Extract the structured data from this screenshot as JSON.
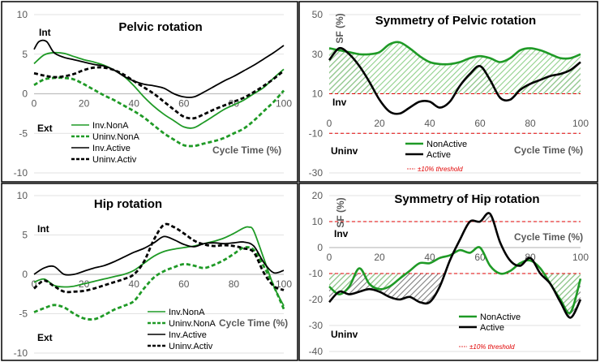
{
  "colors": {
    "green": "#1f9a26",
    "black": "#000000",
    "light_green_hatch": "#8fd08a",
    "grey_hatch": "#7f7f7f",
    "threshold": "#e00000",
    "grid": "#d9d9d9",
    "axis": "#bfbfbf"
  },
  "chart_data": [
    {
      "type": "line",
      "title": "Pelvic rotation",
      "top_label": "Int",
      "bottom_label": "Ext",
      "xlabel": "Cycle  Time (%)",
      "ylabel": "",
      "xlim": [
        0,
        100
      ],
      "ylim": [
        -10,
        10
      ],
      "x_ticks": [
        "0",
        "20",
        "40",
        "60",
        "80",
        "100"
      ],
      "y_ticks": [
        "10",
        "5",
        "0",
        "-5",
        "-10"
      ],
      "series": [
        {
          "name": "Inv.NonA",
          "color": "green",
          "dash": "solid",
          "x": [
            0,
            4,
            8,
            12,
            16,
            20,
            24,
            28,
            32,
            36,
            40,
            44,
            48,
            52,
            56,
            60,
            64,
            68,
            72,
            76,
            80,
            84,
            88,
            92,
            96,
            100
          ],
          "y": [
            3.8,
            4.9,
            5.2,
            5.1,
            4.7,
            4.3,
            4.0,
            3.6,
            3.0,
            2.2,
            1.0,
            -0.4,
            -1.6,
            -2.6,
            -3.4,
            -4.2,
            -4.3,
            -3.6,
            -2.8,
            -2.0,
            -1.4,
            -0.8,
            0.0,
            0.8,
            2.0,
            3.1
          ]
        },
        {
          "name": "Uninv.NonA",
          "color": "green",
          "dash": "dashed",
          "x": [
            0,
            4,
            8,
            12,
            16,
            20,
            24,
            28,
            32,
            36,
            40,
            44,
            48,
            52,
            56,
            60,
            64,
            68,
            72,
            76,
            80,
            84,
            88,
            92,
            96,
            100
          ],
          "y": [
            1.1,
            1.8,
            2.0,
            2.0,
            1.8,
            1.2,
            0.5,
            -0.2,
            -0.8,
            -1.5,
            -2.2,
            -3.0,
            -4.0,
            -5.0,
            -5.8,
            -6.5,
            -6.6,
            -6.3,
            -6.0,
            -5.6,
            -5.0,
            -4.4,
            -3.4,
            -2.2,
            -1.0,
            0.4
          ]
        },
        {
          "name": "Inv.Active",
          "color": "black",
          "dash": "solid",
          "x": [
            0,
            2,
            5,
            8,
            12,
            16,
            20,
            24,
            28,
            32,
            36,
            40,
            44,
            48,
            52,
            56,
            60,
            64,
            68,
            72,
            76,
            80,
            84,
            88,
            92,
            96,
            100
          ],
          "y": [
            5.6,
            6.6,
            6.6,
            5.2,
            4.6,
            4.3,
            4.0,
            3.7,
            3.5,
            3.0,
            2.2,
            1.6,
            1.2,
            1.0,
            0.7,
            0.0,
            -0.4,
            -0.4,
            0.2,
            0.9,
            1.6,
            2.2,
            2.9,
            3.6,
            4.4,
            5.2,
            6.1
          ]
        },
        {
          "name": "Uninv.Activ",
          "color": "black",
          "dash": "dashed",
          "x": [
            0,
            4,
            8,
            12,
            16,
            20,
            24,
            28,
            32,
            36,
            40,
            44,
            48,
            52,
            56,
            60,
            64,
            68,
            72,
            76,
            80,
            84,
            88,
            92,
            96,
            100
          ],
          "y": [
            2.6,
            2.3,
            2.1,
            2.2,
            2.5,
            3.0,
            3.3,
            3.3,
            3.0,
            2.4,
            1.6,
            0.8,
            0.0,
            -1.0,
            -2.0,
            -2.9,
            -3.1,
            -2.6,
            -2.0,
            -1.5,
            -1.0,
            -0.5,
            0.2,
            1.0,
            1.9,
            2.9
          ]
        }
      ]
    },
    {
      "type": "line",
      "title": "Symmetry of Pelvic rotation",
      "ylabel": "SF (%)",
      "top_label": "Inv",
      "bottom_label": "Uninv",
      "xlabel": "Cycle Time (%)",
      "xlim": [
        0,
        100
      ],
      "ylim": [
        -30,
        50
      ],
      "x_ticks": [
        "0",
        "20",
        "40",
        "60",
        "80",
        "100"
      ],
      "y_ticks": [
        "50",
        "30",
        "10",
        "-10",
        "-30"
      ],
      "thresholds": [
        10,
        -10
      ],
      "threshold_label": "±10% threshold",
      "series": [
        {
          "name": "NonActive",
          "color": "green",
          "x": [
            0,
            4,
            8,
            12,
            16,
            20,
            24,
            28,
            32,
            36,
            40,
            44,
            48,
            52,
            56,
            60,
            64,
            68,
            72,
            76,
            80,
            84,
            88,
            92,
            96,
            100
          ],
          "y": [
            33,
            32,
            31,
            30,
            30,
            31,
            35,
            36,
            33,
            29,
            26,
            25,
            25,
            26,
            28,
            29,
            28,
            26,
            28,
            32,
            33,
            32,
            30,
            28,
            28,
            30
          ]
        },
        {
          "name": "Active",
          "color": "black",
          "x": [
            0,
            4,
            8,
            12,
            16,
            20,
            24,
            28,
            32,
            36,
            40,
            44,
            48,
            52,
            56,
            60,
            64,
            68,
            72,
            76,
            80,
            84,
            88,
            92,
            96,
            100
          ],
          "y": [
            27,
            33,
            30,
            24,
            16,
            7,
            1,
            0,
            3,
            6,
            6,
            3,
            6,
            14,
            20,
            24,
            17,
            8,
            7,
            12,
            15,
            17,
            19,
            20,
            22,
            26
          ]
        }
      ]
    },
    {
      "type": "line",
      "title": "Hip rotation",
      "top_label": "Int",
      "bottom_label": "Ext",
      "xlabel": "Cycle Time (%)",
      "ylabel": "",
      "xlim": [
        0,
        100
      ],
      "ylim": [
        -10,
        10
      ],
      "x_ticks": [
        "0",
        "20",
        "40",
        "60",
        "80",
        "100"
      ],
      "y_ticks": [
        "10",
        "5",
        "0",
        "-5",
        "-10"
      ],
      "series": [
        {
          "name": "Inv.NonA",
          "color": "green",
          "dash": "solid",
          "x": [
            0,
            4,
            8,
            12,
            16,
            20,
            24,
            28,
            32,
            36,
            40,
            44,
            48,
            52,
            56,
            60,
            64,
            68,
            72,
            76,
            80,
            84,
            86,
            88,
            92,
            96,
            100
          ],
          "y": [
            -1.0,
            -0.6,
            -1.4,
            -1.6,
            -1.5,
            -1.2,
            -0.9,
            -0.6,
            -0.3,
            0.0,
            0.5,
            1.4,
            2.3,
            2.9,
            3.2,
            3.4,
            3.6,
            3.9,
            4.2,
            4.6,
            5.2,
            5.9,
            6.0,
            5.5,
            2.0,
            -1.5,
            -4.0
          ]
        },
        {
          "name": "Uninv.NonA",
          "color": "green",
          "dash": "dashed",
          "x": [
            0,
            4,
            8,
            12,
            16,
            20,
            24,
            28,
            32,
            36,
            40,
            44,
            48,
            52,
            56,
            60,
            64,
            68,
            72,
            76,
            80,
            84,
            88,
            92,
            96,
            100
          ],
          "y": [
            -4.8,
            -4.3,
            -3.9,
            -4.2,
            -5.0,
            -5.6,
            -5.7,
            -5.2,
            -4.5,
            -4.0,
            -3.4,
            -1.8,
            -0.4,
            0.4,
            0.9,
            1.3,
            1.1,
            0.8,
            1.2,
            1.8,
            2.6,
            3.4,
            3.1,
            1.0,
            -1.5,
            -4.4
          ]
        },
        {
          "name": "Inv.Active",
          "color": "black",
          "dash": "solid",
          "x": [
            0,
            4,
            8,
            12,
            16,
            20,
            24,
            28,
            32,
            36,
            40,
            44,
            48,
            52,
            56,
            60,
            64,
            68,
            72,
            76,
            80,
            84,
            88,
            92,
            96,
            100
          ],
          "y": [
            0.0,
            0.8,
            1.0,
            0.0,
            0.0,
            0.4,
            0.8,
            1.1,
            1.6,
            2.2,
            2.8,
            3.3,
            4.0,
            4.8,
            4.4,
            3.8,
            3.5,
            3.9,
            4.0,
            3.9,
            4.0,
            4.1,
            3.6,
            1.5,
            0.2,
            0.5
          ]
        },
        {
          "name": "Uninv.Activ",
          "color": "black",
          "dash": "dashed",
          "x": [
            0,
            4,
            8,
            12,
            16,
            20,
            24,
            28,
            32,
            36,
            40,
            44,
            48,
            52,
            56,
            60,
            64,
            68,
            72,
            76,
            80,
            84,
            88,
            92,
            96,
            100
          ],
          "y": [
            -1.8,
            -0.8,
            -1.5,
            -2.2,
            -2.2,
            -2.1,
            -1.8,
            -1.4,
            -1.0,
            -0.6,
            0.0,
            1.6,
            4.4,
            6.3,
            6.0,
            5.2,
            4.3,
            3.8,
            3.6,
            3.7,
            3.6,
            3.3,
            2.8,
            0.2,
            -1.5,
            -2.0
          ]
        }
      ]
    },
    {
      "type": "line",
      "title": "Symmetry of Hip rotation",
      "ylabel": "SF (%)",
      "top_label": "Inv",
      "bottom_label": "Uninv",
      "xlabel": "Cycle Time (%)",
      "xlim": [
        0,
        100
      ],
      "ylim": [
        -40,
        20
      ],
      "x_ticks": [
        "0",
        "20",
        "40",
        "60",
        "80",
        "100"
      ],
      "y_ticks": [
        "20",
        "10",
        "0",
        "-10",
        "-20",
        "-30",
        "-40"
      ],
      "thresholds": [
        10,
        -10
      ],
      "threshold_label": "±10% threshold",
      "series": [
        {
          "name": "NonActive",
          "color": "green",
          "x": [
            0,
            4,
            8,
            12,
            16,
            20,
            24,
            28,
            32,
            36,
            40,
            44,
            48,
            52,
            56,
            60,
            64,
            68,
            72,
            76,
            80,
            84,
            88,
            92,
            96,
            100
          ],
          "y": [
            -15,
            -18,
            -15,
            -8,
            -14,
            -16,
            -15,
            -12,
            -9,
            -6,
            -6,
            -4,
            -3,
            -1,
            -2,
            0,
            -7,
            -10,
            -9,
            -6,
            -5,
            -8,
            -14,
            -20,
            -25,
            -12
          ]
        },
        {
          "name": "Active",
          "color": "black",
          "x": [
            0,
            4,
            8,
            12,
            16,
            20,
            24,
            28,
            32,
            36,
            40,
            44,
            48,
            52,
            56,
            60,
            64,
            68,
            72,
            76,
            80,
            84,
            88,
            92,
            96,
            100
          ],
          "y": [
            -21,
            -17,
            -18,
            -17,
            -16,
            -17,
            -19,
            -20,
            -19,
            -21,
            -21,
            -15,
            -5,
            3,
            10,
            10,
            13,
            2,
            -5,
            -7,
            -4,
            -10,
            -14,
            -21,
            -27,
            -20
          ]
        }
      ]
    }
  ]
}
